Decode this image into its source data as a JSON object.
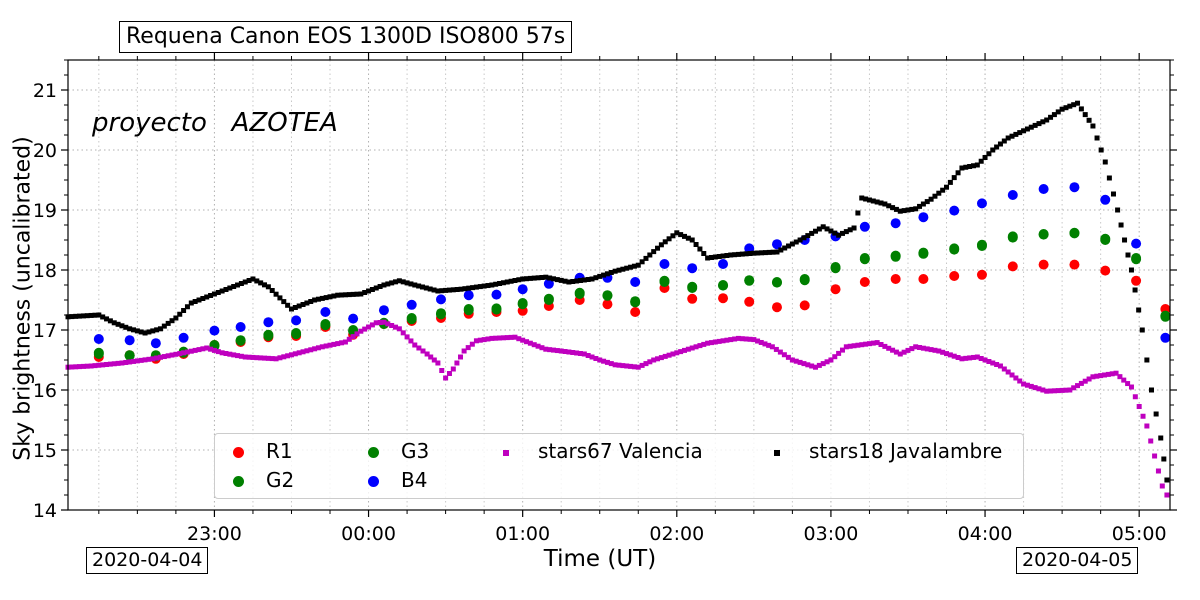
{
  "title": "Requena  Canon EOS 1300D  ISO800 57s",
  "watermark": "proyecto   AZOTEA",
  "date_start": "2020-04-04",
  "date_end": "2020-04-05",
  "chart_data": {
    "type": "scatter",
    "xlabel": "Time (UT)",
    "ylabel": "Sky brightness (uncalibrated)",
    "x_unit": "hours UT relative to 2020-04-05 00:00",
    "xlim": [
      -1.95,
      5.2
    ],
    "ylim": [
      14,
      21.5
    ],
    "grid": true,
    "legend_position": "lower-center",
    "x_ticks": [
      {
        "value": -1,
        "label": "23:00"
      },
      {
        "value": 0,
        "label": "00:00"
      },
      {
        "value": 1,
        "label": "01:00"
      },
      {
        "value": 2,
        "label": "02:00"
      },
      {
        "value": 3,
        "label": "03:00"
      },
      {
        "value": 4,
        "label": "04:00"
      },
      {
        "value": 5,
        "label": "05:00"
      }
    ],
    "y_ticks": [
      14,
      15,
      16,
      17,
      18,
      19,
      20,
      21
    ],
    "colors": {
      "R1": "#ff0000",
      "G2": "#008000",
      "G3": "#008000",
      "B4": "#0000ff",
      "stars67": "#bf00bf",
      "stars18": "#000000"
    },
    "rgb_x": [
      -1.75,
      -1.55,
      -1.38,
      -1.2,
      -1.0,
      -0.83,
      -0.65,
      -0.47,
      -0.28,
      -0.1,
      0.1,
      0.28,
      0.47,
      0.65,
      0.83,
      1.0,
      1.17,
      1.37,
      1.55,
      1.73,
      1.92,
      2.1,
      2.3,
      2.47,
      2.65,
      2.83,
      3.03,
      3.22,
      3.42,
      3.6,
      3.8,
      3.98,
      4.18,
      4.38,
      4.58,
      4.78,
      4.98,
      5.17
    ],
    "series": [
      {
        "name": "R1",
        "marker": "dot",
        "color": "#ff0000",
        "values": [
          16.55,
          16.58,
          16.52,
          16.6,
          16.75,
          16.8,
          16.88,
          16.9,
          17.05,
          16.92,
          17.1,
          17.15,
          17.2,
          17.27,
          17.3,
          17.32,
          17.4,
          17.5,
          17.43,
          17.3,
          17.7,
          17.52,
          17.53,
          17.47,
          17.38,
          17.41,
          17.68,
          17.8,
          17.85,
          17.85,
          17.9,
          17.92,
          18.06,
          18.09,
          18.09,
          17.99,
          17.82,
          17.35
        ]
      },
      {
        "name": "G2",
        "marker": "dot",
        "color": "#008000",
        "values": [
          16.6,
          16.57,
          16.56,
          16.62,
          16.73,
          16.82,
          16.9,
          16.93,
          17.08,
          16.98,
          17.1,
          17.18,
          17.26,
          17.33,
          17.34,
          17.43,
          17.5,
          17.6,
          17.57,
          17.46,
          17.8,
          17.7,
          17.74,
          17.82,
          17.79,
          17.83,
          18.03,
          18.18,
          18.22,
          18.27,
          18.34,
          18.4,
          18.54,
          18.59,
          18.61,
          18.5,
          18.18,
          17.22
        ]
      },
      {
        "name": "G3",
        "marker": "dot",
        "color": "#008000",
        "values": [
          16.62,
          16.58,
          16.58,
          16.64,
          16.75,
          16.83,
          16.92,
          16.95,
          17.1,
          17.0,
          17.12,
          17.2,
          17.28,
          17.35,
          17.36,
          17.45,
          17.52,
          17.62,
          17.58,
          17.48,
          17.82,
          17.72,
          17.75,
          17.83,
          17.8,
          17.85,
          18.05,
          18.2,
          18.24,
          18.29,
          18.36,
          18.42,
          18.56,
          18.6,
          18.62,
          18.52,
          18.2,
          17.24
        ]
      },
      {
        "name": "B4",
        "marker": "dot",
        "color": "#0000ff",
        "values": [
          16.85,
          16.83,
          16.78,
          16.87,
          16.99,
          17.05,
          17.13,
          17.16,
          17.3,
          17.19,
          17.33,
          17.42,
          17.51,
          17.58,
          17.59,
          17.68,
          17.77,
          17.87,
          17.87,
          17.8,
          18.1,
          18.03,
          18.1,
          18.36,
          18.43,
          18.5,
          18.56,
          18.72,
          18.78,
          18.88,
          18.99,
          19.11,
          19.25,
          19.35,
          19.38,
          19.17,
          18.44,
          16.87
        ]
      },
      {
        "name": "stars67 Valencia",
        "marker": "square",
        "color": "#bf00bf",
        "points": [
          [
            -1.95,
            16.38
          ],
          [
            -1.8,
            16.4
          ],
          [
            -1.6,
            16.45
          ],
          [
            -1.4,
            16.52
          ],
          [
            -1.2,
            16.62
          ],
          [
            -1.05,
            16.7
          ],
          [
            -0.95,
            16.62
          ],
          [
            -0.8,
            16.55
          ],
          [
            -0.6,
            16.52
          ],
          [
            -0.45,
            16.62
          ],
          [
            -0.3,
            16.72
          ],
          [
            -0.15,
            16.8
          ],
          [
            -0.05,
            16.98
          ],
          [
            0.05,
            17.12
          ],
          [
            0.1,
            17.13
          ],
          [
            0.2,
            17.02
          ],
          [
            0.3,
            16.75
          ],
          [
            0.38,
            16.6
          ],
          [
            0.45,
            16.45
          ],
          [
            0.5,
            16.2
          ],
          [
            0.55,
            16.35
          ],
          [
            0.62,
            16.65
          ],
          [
            0.7,
            16.82
          ],
          [
            0.8,
            16.86
          ],
          [
            0.95,
            16.88
          ],
          [
            1.05,
            16.78
          ],
          [
            1.15,
            16.68
          ],
          [
            1.25,
            16.65
          ],
          [
            1.4,
            16.6
          ],
          [
            1.5,
            16.5
          ],
          [
            1.6,
            16.42
          ],
          [
            1.75,
            16.38
          ],
          [
            1.85,
            16.5
          ],
          [
            2.0,
            16.62
          ],
          [
            2.2,
            16.78
          ],
          [
            2.4,
            16.86
          ],
          [
            2.5,
            16.84
          ],
          [
            2.62,
            16.72
          ],
          [
            2.75,
            16.5
          ],
          [
            2.9,
            16.38
          ],
          [
            3.0,
            16.5
          ],
          [
            3.1,
            16.72
          ],
          [
            3.3,
            16.79
          ],
          [
            3.45,
            16.6
          ],
          [
            3.55,
            16.72
          ],
          [
            3.7,
            16.65
          ],
          [
            3.85,
            16.52
          ],
          [
            3.95,
            16.55
          ],
          [
            4.1,
            16.4
          ],
          [
            4.25,
            16.1
          ],
          [
            4.4,
            15.98
          ],
          [
            4.55,
            16.0
          ],
          [
            4.7,
            16.22
          ],
          [
            4.85,
            16.28
          ],
          [
            4.95,
            16.05
          ],
          [
            5.05,
            15.4
          ],
          [
            5.1,
            14.9
          ],
          [
            5.15,
            14.4
          ],
          [
            5.18,
            14.25
          ]
        ]
      },
      {
        "name": "stars18 Javalambre",
        "marker": "square",
        "color": "#000000",
        "points": [
          [
            -1.95,
            17.22
          ],
          [
            -1.75,
            17.25
          ],
          [
            -1.65,
            17.12
          ],
          [
            -1.55,
            17.02
          ],
          [
            -1.45,
            16.95
          ],
          [
            -1.35,
            17.02
          ],
          [
            -1.25,
            17.2
          ],
          [
            -1.15,
            17.45
          ],
          [
            -1.05,
            17.55
          ],
          [
            -0.9,
            17.7
          ],
          [
            -0.75,
            17.85
          ],
          [
            -0.65,
            17.72
          ],
          [
            -0.5,
            17.35
          ],
          [
            -0.35,
            17.5
          ],
          [
            -0.2,
            17.58
          ],
          [
            -0.05,
            17.6
          ],
          [
            0.1,
            17.75
          ],
          [
            0.2,
            17.82
          ],
          [
            0.3,
            17.75
          ],
          [
            0.45,
            17.65
          ],
          [
            0.6,
            17.68
          ],
          [
            0.8,
            17.75
          ],
          [
            1.0,
            17.85
          ],
          [
            1.15,
            17.88
          ],
          [
            1.3,
            17.8
          ],
          [
            1.45,
            17.85
          ],
          [
            1.6,
            17.98
          ],
          [
            1.75,
            18.08
          ],
          [
            1.9,
            18.42
          ],
          [
            2.0,
            18.62
          ],
          [
            2.1,
            18.5
          ],
          [
            2.2,
            18.2
          ],
          [
            2.35,
            18.25
          ],
          [
            2.5,
            18.28
          ],
          [
            2.65,
            18.3
          ],
          [
            2.8,
            18.5
          ],
          [
            2.95,
            18.72
          ],
          [
            3.05,
            18.58
          ],
          [
            3.15,
            18.7
          ],
          [
            3.2,
            19.2
          ],
          [
            3.35,
            19.1
          ],
          [
            3.45,
            18.98
          ],
          [
            3.55,
            19.02
          ],
          [
            3.65,
            19.18
          ],
          [
            3.75,
            19.38
          ],
          [
            3.85,
            19.7
          ],
          [
            3.95,
            19.75
          ],
          [
            4.05,
            20.0
          ],
          [
            4.15,
            20.2
          ],
          [
            4.25,
            20.32
          ],
          [
            4.4,
            20.5
          ],
          [
            4.5,
            20.68
          ],
          [
            4.6,
            20.78
          ],
          [
            4.7,
            20.4
          ],
          [
            4.78,
            19.8
          ],
          [
            4.86,
            19.0
          ],
          [
            4.95,
            18.0
          ],
          [
            5.02,
            17.0
          ],
          [
            5.08,
            16.0
          ],
          [
            5.14,
            15.2
          ],
          [
            5.18,
            14.5
          ]
        ]
      }
    ]
  }
}
